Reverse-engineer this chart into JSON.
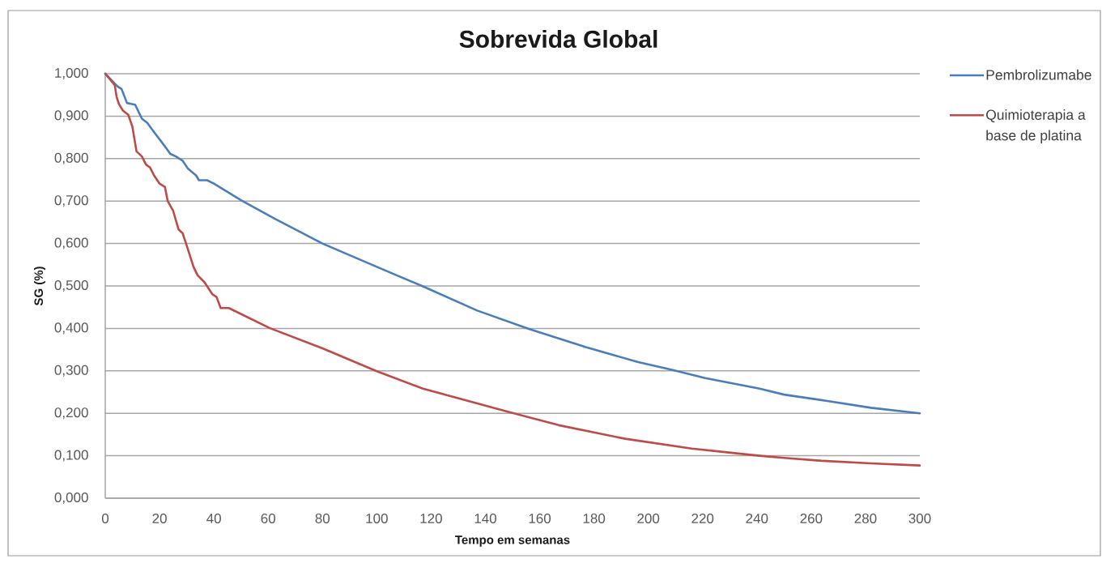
{
  "chart_data": {
    "type": "line",
    "title": "Sobrevida Global",
    "xlabel": "Tempo em semanas",
    "ylabel": "SG (%)",
    "xlim": [
      0,
      300
    ],
    "xticks": [
      0,
      20,
      40,
      60,
      80,
      100,
      120,
      140,
      160,
      180,
      200,
      220,
      240,
      260,
      280,
      300
    ],
    "ylim": [
      0,
      1
    ],
    "yticks": [
      {
        "value": 0,
        "label": "0,000"
      },
      {
        "value": 0.1,
        "label": "0,100"
      },
      {
        "value": 0.2,
        "label": "0,200"
      },
      {
        "value": 0.3,
        "label": "0,300"
      },
      {
        "value": 0.4,
        "label": "0,400"
      },
      {
        "value": 0.5,
        "label": "0,500"
      },
      {
        "value": 0.6,
        "label": "0,600"
      },
      {
        "value": 0.7,
        "label": "0,700"
      },
      {
        "value": 0.8,
        "label": "0,800"
      },
      {
        "value": 0.9,
        "label": "0,900"
      },
      {
        "value": 1,
        "label": "1,000"
      }
    ],
    "grid": "y",
    "legend": "right",
    "line_style": "solid",
    "series": [
      {
        "name": "Pembrolizumabe",
        "color": "#4a7ebb",
        "x": [
          0,
          4.5,
          6,
          8,
          9.5,
          11,
          13.5,
          15.5,
          18,
          21,
          24,
          26,
          28.5,
          30.5,
          33.5,
          34.5,
          37.5,
          40,
          50,
          62.5,
          80,
          100,
          117,
          137,
          156,
          177,
          196,
          209,
          221,
          241,
          250,
          265,
          282,
          300
        ],
        "values": [
          1.0,
          0.97,
          0.964,
          0.931,
          0.929,
          0.927,
          0.894,
          0.884,
          0.862,
          0.837,
          0.811,
          0.805,
          0.795,
          0.776,
          0.76,
          0.749,
          0.749,
          0.741,
          0.702,
          0.658,
          0.6,
          0.545,
          0.499,
          0.442,
          0.399,
          0.356,
          0.321,
          0.302,
          0.283,
          0.258,
          0.244,
          0.23,
          0.213,
          0.2
        ]
      },
      {
        "name": "Quimioterapia a base de platina",
        "color": "#be4b48",
        "x": [
          0,
          3.5,
          4.2,
          5,
          6.5,
          8.5,
          10,
          11.5,
          13.5,
          15,
          16.5,
          18,
          20,
          22,
          23,
          25,
          27,
          28.5,
          30,
          32.5,
          34,
          36.5,
          39.5,
          41,
          42.5,
          45.5,
          60.5,
          80,
          100,
          117,
          148,
          167,
          191.5,
          216,
          229,
          241,
          250,
          264,
          282,
          300
        ],
        "values": [
          1.0,
          0.973,
          0.945,
          0.929,
          0.913,
          0.903,
          0.875,
          0.817,
          0.805,
          0.786,
          0.779,
          0.76,
          0.741,
          0.733,
          0.7,
          0.677,
          0.633,
          0.624,
          0.595,
          0.545,
          0.525,
          0.509,
          0.48,
          0.474,
          0.448,
          0.448,
          0.401,
          0.353,
          0.299,
          0.258,
          0.204,
          0.172,
          0.14,
          0.117,
          0.108,
          0.1,
          0.095,
          0.088,
          0.082,
          0.077
        ]
      }
    ]
  }
}
